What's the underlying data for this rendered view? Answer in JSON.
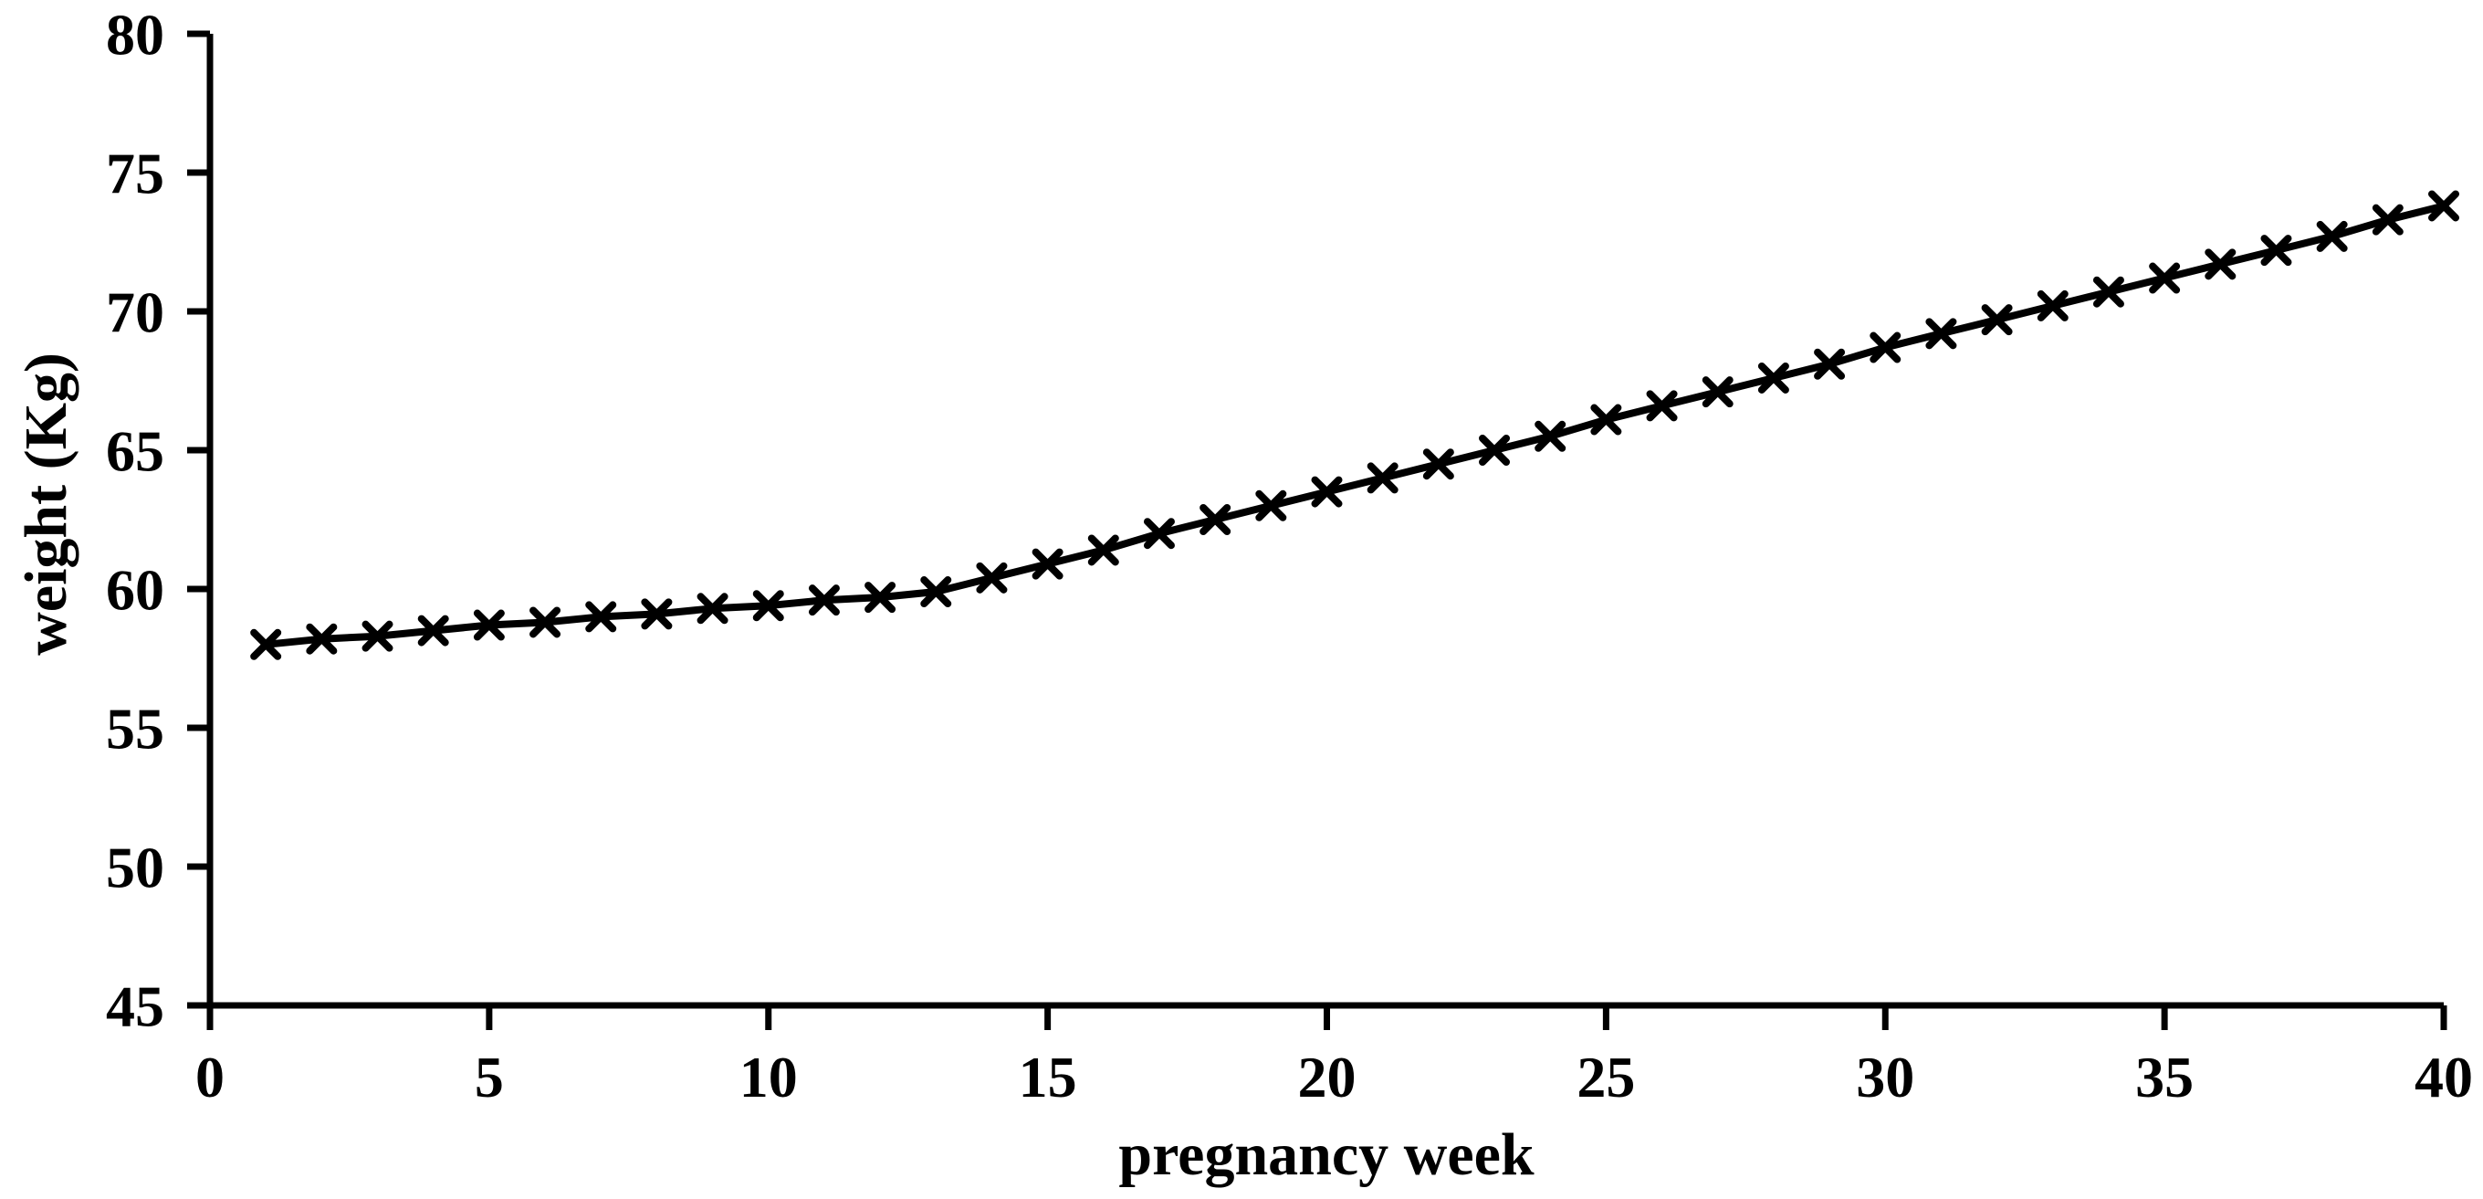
{
  "page": {
    "background_color": "#ffffff",
    "foreground_color": "#000000"
  },
  "chart_data": {
    "type": "line",
    "title": "",
    "xlabel": "pregnancy week",
    "ylabel": "weight (Kg)",
    "x": [
      1,
      2,
      3,
      4,
      5,
      6,
      7,
      8,
      9,
      10,
      11,
      12,
      13,
      14,
      15,
      16,
      17,
      18,
      19,
      20,
      21,
      22,
      23,
      24,
      25,
      26,
      27,
      28,
      29,
      30,
      31,
      32,
      33,
      34,
      35,
      36,
      37,
      38,
      39,
      40
    ],
    "series": [
      {
        "name": "weight",
        "values": [
          58.0,
          58.2,
          58.3,
          58.5,
          58.7,
          58.8,
          59.0,
          59.1,
          59.3,
          59.4,
          59.6,
          59.7,
          59.9,
          60.4,
          60.9,
          61.4,
          62.0,
          62.5,
          63.0,
          63.5,
          64.0,
          64.5,
          65.0,
          65.5,
          66.1,
          66.6,
          67.1,
          67.6,
          68.1,
          68.7,
          69.2,
          69.7,
          70.2,
          70.7,
          71.2,
          71.7,
          72.2,
          72.7,
          73.3,
          73.8
        ]
      }
    ],
    "xlim": [
      0,
      40
    ],
    "ylim": [
      45,
      80
    ],
    "xticks": [
      0,
      5,
      10,
      15,
      20,
      25,
      30,
      35,
      40
    ],
    "yticks": [
      45,
      50,
      55,
      60,
      65,
      70,
      75,
      80
    ],
    "grid": false,
    "legend": "none",
    "marker": "x",
    "line_color": "#000000",
    "marker_color": "#000000",
    "axis_color": "#000000",
    "tick_label_color": "#000000"
  }
}
